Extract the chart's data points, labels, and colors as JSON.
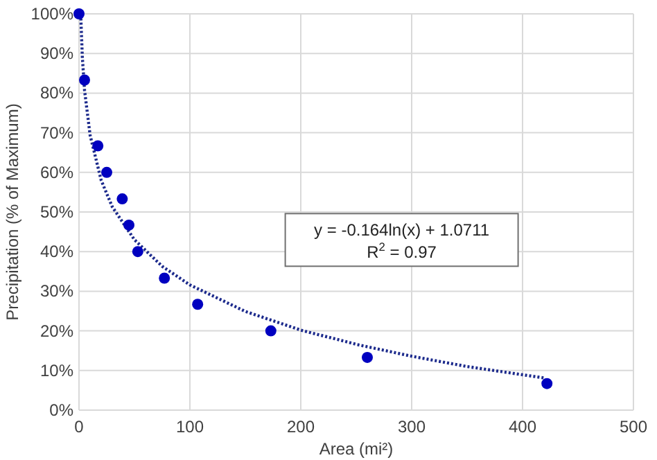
{
  "chart_data": {
    "type": "scatter",
    "xlabel": "Area (mi²)",
    "ylabel": "Precipitation (% of Maximum)",
    "xlim": [
      0,
      500
    ],
    "xticks": [
      0,
      100,
      200,
      300,
      400,
      500
    ],
    "ylim": [
      0,
      100
    ],
    "yticks": [
      {
        "value": 0,
        "label": "0%"
      },
      {
        "value": 10,
        "label": "10%"
      },
      {
        "value": 20,
        "label": "20%"
      },
      {
        "value": 30,
        "label": "30%"
      },
      {
        "value": 40,
        "label": "40%"
      },
      {
        "value": 50,
        "label": "50%"
      },
      {
        "value": 60,
        "label": "60%"
      },
      {
        "value": 70,
        "label": "70%"
      },
      {
        "value": 80,
        "label": "80%"
      },
      {
        "value": 90,
        "label": "90%"
      },
      {
        "value": 100,
        "label": "100%"
      }
    ],
    "grid": true,
    "annotations": [
      "y = -0.164ln(x) + 1.0711",
      "R$^{2}$ = 0.97"
    ],
    "series": [
      {
        "type": "line",
        "line_style": "dotted",
        "marker": "none",
        "color": "#1c2a8c",
        "x": [
          1.55,
          3,
          5,
          10,
          20,
          30,
          50,
          75,
          100,
          150,
          200,
          250,
          300,
          350,
          420
        ],
        "values": [
          99.9,
          89.1,
          80.7,
          69.4,
          58,
          51.3,
          43,
          36.3,
          31.6,
          24.9,
          20.2,
          16.6,
          13.6,
          11,
          8.1
        ]
      },
      {
        "marker": "circle",
        "color": "#0000c0",
        "x": [
          0,
          5,
          17,
          25,
          39,
          45,
          53,
          77,
          107,
          173,
          260,
          422
        ],
        "values": [
          100,
          83.3,
          66.7,
          60,
          53.3,
          46.7,
          40,
          33.3,
          26.7,
          20,
          13.3,
          6.7
        ]
      }
    ]
  }
}
